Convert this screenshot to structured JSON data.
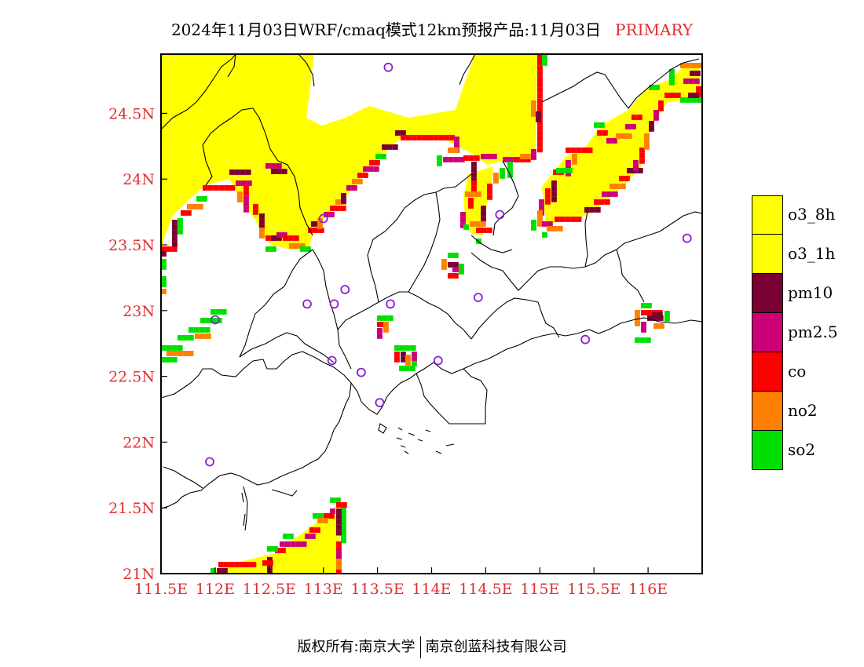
{
  "header": {
    "title": "2024年11月03日WRF/cmaq模式12km预报产品:11月03日",
    "highlight": "PRIMARY"
  },
  "colors": {
    "o3_8h": "#ffff00",
    "o3_1h": "#ffff00",
    "pm10": "#7a0033",
    "pm25": "#cc0077",
    "co": "#ff0000",
    "no2": "#ff7f00",
    "so2": "#00e000",
    "axis_label": "#e03030",
    "station": "#8a1fd6"
  },
  "axes": {
    "x_ticks": [
      "111.5E",
      "112E",
      "112.5E",
      "113E",
      "113.5E",
      "114E",
      "114.5E",
      "115E",
      "115.5E",
      "116E"
    ],
    "y_ticks": [
      "21N",
      "21.5N",
      "22N",
      "22.5N",
      "23N",
      "23.5N",
      "24N",
      "24.5N"
    ],
    "lon_range": [
      111.5,
      116.5
    ],
    "lat_range": [
      21.0,
      24.95
    ]
  },
  "legend": [
    {
      "key": "o3_8h",
      "label": "o3_8h"
    },
    {
      "key": "o3_1h",
      "label": "o3_1h"
    },
    {
      "key": "pm10",
      "label": "pm10"
    },
    {
      "key": "pm25",
      "label": "pm2.5"
    },
    {
      "key": "co",
      "label": "co"
    },
    {
      "key": "no2",
      "label": "no2"
    },
    {
      "key": "so2",
      "label": "so2"
    }
  ],
  "stations": [
    [
      113.6,
      24.85
    ],
    [
      113.0,
      23.7
    ],
    [
      114.63,
      23.73
    ],
    [
      116.36,
      23.55
    ],
    [
      113.2,
      23.16
    ],
    [
      112.85,
      23.05
    ],
    [
      113.1,
      23.05
    ],
    [
      113.62,
      23.05
    ],
    [
      114.43,
      23.1
    ],
    [
      112.0,
      22.93
    ],
    [
      115.42,
      22.78
    ],
    [
      113.08,
      22.62
    ],
    [
      113.35,
      22.53
    ],
    [
      114.06,
      22.62
    ],
    [
      113.52,
      22.3
    ],
    [
      111.95,
      21.85
    ]
  ],
  "footer": {
    "left": "版权所有:南京大学",
    "right": "南京创蓝科技有限公司"
  }
}
